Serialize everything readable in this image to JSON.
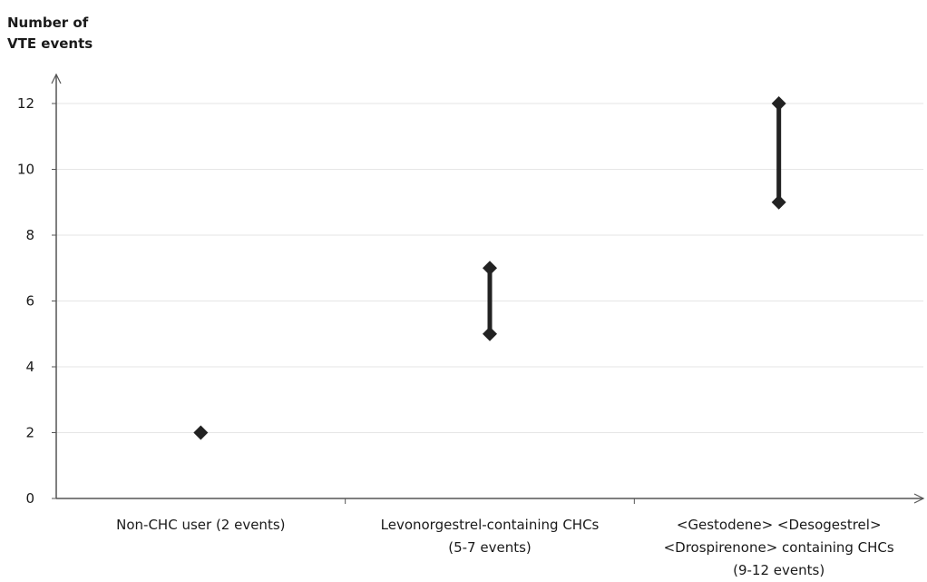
{
  "chart_data": {
    "type": "scatter",
    "ylabel_lines": [
      "Number of",
      "VTE events"
    ],
    "xlabel": "",
    "ylim": [
      0,
      12
    ],
    "yticks": [
      0,
      2,
      4,
      6,
      8,
      10,
      12
    ],
    "grid": true,
    "categories": [
      {
        "label_lines": [
          "Non-CHC user (2 events)"
        ],
        "min": 2,
        "max": 2
      },
      {
        "label_lines": [
          "Levonorgestrel-containing CHCs",
          "(5-7 events)"
        ],
        "min": 5,
        "max": 7
      },
      {
        "label_lines": [
          "<Gestodene> <Desogestrel>",
          "<Drospirenone> containing CHCs",
          "(9-12 events)"
        ],
        "min": 9,
        "max": 12
      }
    ],
    "colors": {
      "marker": "#222222",
      "axis": "#555555",
      "grid": "#e6e6e6"
    }
  }
}
